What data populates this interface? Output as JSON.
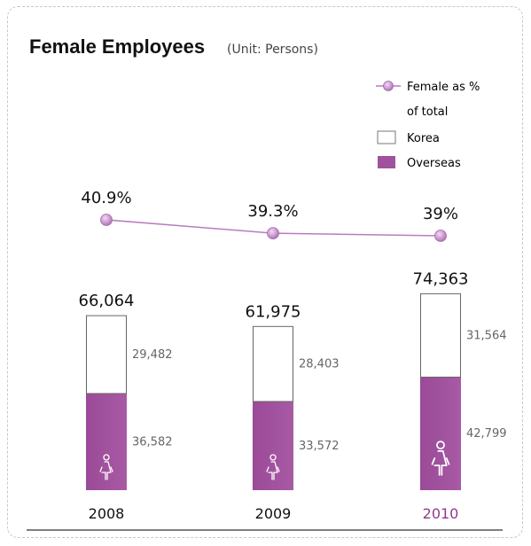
{
  "chart_data": {
    "type": "bar",
    "title": "Female Employees",
    "subtitle": "(Unit: Persons)",
    "categories": [
      "2008",
      "2009",
      "2010"
    ],
    "highlight_category": "2010",
    "series": [
      {
        "name": "Overseas",
        "values": [
          36582,
          33572,
          42799
        ],
        "color": "#a0529c"
      },
      {
        "name": "Korea",
        "values": [
          29482,
          28403,
          31564
        ],
        "color": "#ffffff"
      }
    ],
    "totals": [
      "66,064",
      "61,975",
      "74,363"
    ],
    "segment_labels": {
      "Korea": [
        "29,482",
        "28,403",
        "31,564"
      ],
      "Overseas": [
        "36,582",
        "33,572",
        "42,799"
      ]
    },
    "line_series": {
      "name": "Female as % of total",
      "values": [
        40.9,
        39.3,
        39.0
      ],
      "labels": [
        "40.9%",
        "39.3%",
        "39%"
      ],
      "color": "#b97cc0"
    },
    "legend": {
      "items": [
        "Female as %",
        "of total",
        "Korea",
        "Overseas"
      ],
      "placement": "top-right"
    },
    "text_color": "#333333",
    "muted_color": "#666666",
    "highlight_color": "#8e3b8d",
    "axis_color": "#333333",
    "icon_names": [
      "female-person-icon"
    ]
  }
}
